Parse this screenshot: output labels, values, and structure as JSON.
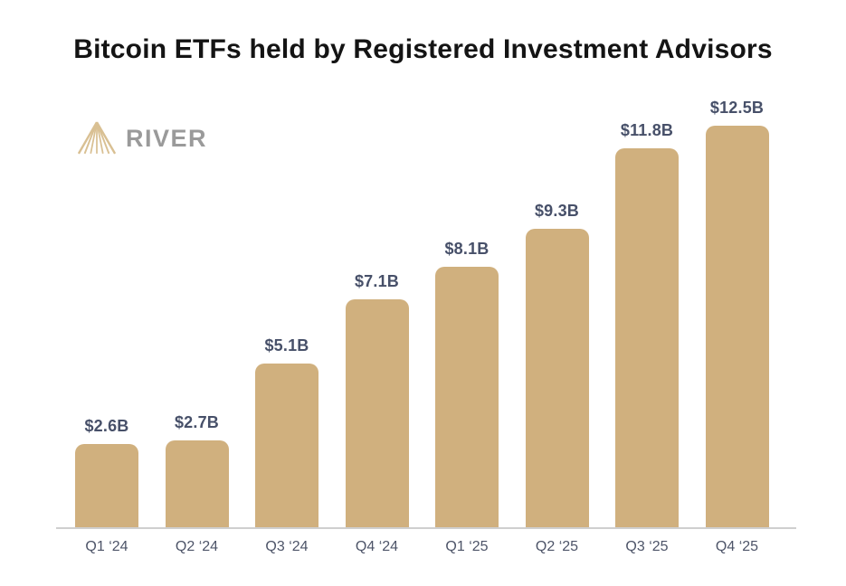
{
  "chart_data": {
    "type": "bar",
    "title": "Bitcoin ETFs held by Registered Investment Advisors",
    "categories": [
      "Q1 ‘24",
      "Q2 ‘24",
      "Q3 ‘24",
      "Q4 ‘24",
      "Q1 ‘25",
      "Q2 ‘25",
      "Q3 ‘25",
      "Q4 ‘25"
    ],
    "values": [
      2.6,
      2.7,
      5.1,
      7.1,
      8.1,
      9.3,
      11.8,
      12.5
    ],
    "value_labels": [
      "$2.6B",
      "$2.7B",
      "$5.1B",
      "$7.1B",
      "$8.1B",
      "$9.3B",
      "$11.8B",
      "$12.5B"
    ],
    "xlabel": "",
    "ylabel": "",
    "ylim": [
      0,
      13
    ],
    "grid": false,
    "legend": "none",
    "bar_color": "#D0B07E",
    "value_label_color": "#475069",
    "tick_label_color": "#4D5468",
    "axis_line_color": "#CFCFCF"
  },
  "branding": {
    "logo_text": "RIVER",
    "logo_icon": "mountain-rays-icon",
    "logo_text_color": "#9A9A9A",
    "logo_icon_color": "#D9C093"
  }
}
